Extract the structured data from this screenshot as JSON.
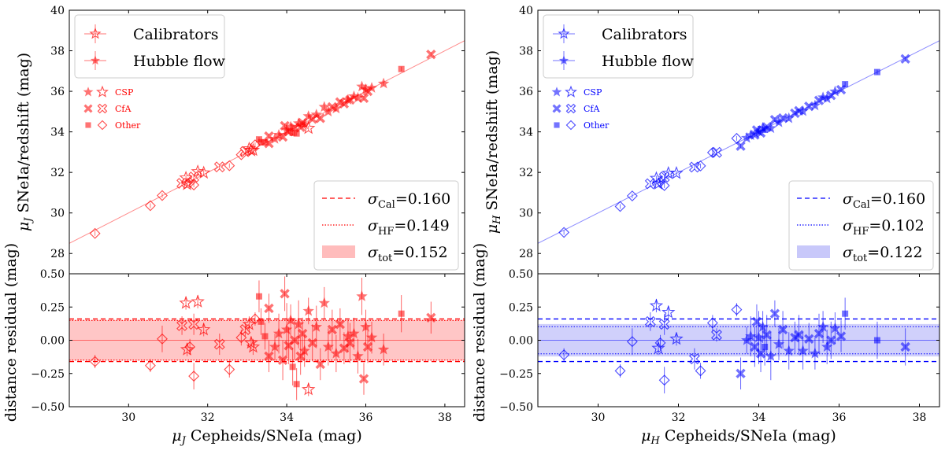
{
  "chart_data": [
    {
      "type": "scatter",
      "band": "J",
      "color": "#ff0000",
      "fill": "#ffbcbc",
      "title": "",
      "xlabel": "μJ Cepheids/SNeIa (mag)",
      "ylabel_top": "μJ SNeIa/redshift (mag)",
      "ylabel_bottom": "distance residual (mag)",
      "xlim": [
        28.5,
        38.5
      ],
      "ylim_top": [
        27,
        40
      ],
      "ylim_bottom": [
        -0.5,
        0.5
      ],
      "xticks": [
        "30",
        "32",
        "34",
        "36",
        "38"
      ],
      "yticks_top": [
        "28",
        "30",
        "32",
        "34",
        "36",
        "38",
        "40"
      ],
      "yticks_bottom": [
        "−0.50",
        "−0.25",
        "0.00",
        "0.25",
        "0.50"
      ],
      "legend_main": [
        "Calibrators",
        "Hubble flow"
      ],
      "legend_survey": [
        "CSP",
        "CfA",
        "Other"
      ],
      "legend_sigma": [
        {
          "label": "σCal",
          "sym": "σ",
          "sub": "Cal",
          "value": "0.160"
        },
        {
          "label": "σHF",
          "sym": "σ",
          "sub": "HF",
          "value": "0.149"
        },
        {
          "label": "σtot",
          "sym": "σ",
          "sub": "tot",
          "value": "0.152"
        }
      ],
      "sigma_cal": 0.16,
      "sigma_hf": 0.149,
      "sigma_tot": 0.152,
      "calibrators": [
        {
          "x": 29.15,
          "r": -0.16,
          "e": 0.05,
          "s": "other"
        },
        {
          "x": 30.55,
          "r": -0.19,
          "e": 0.05,
          "s": "other"
        },
        {
          "x": 30.85,
          "r": 0.01,
          "e": 0.1,
          "s": "other"
        },
        {
          "x": 31.35,
          "r": 0.11,
          "e": 0.07,
          "s": "cfa"
        },
        {
          "x": 31.45,
          "r": 0.28,
          "e": 0.05,
          "s": "csp"
        },
        {
          "x": 31.48,
          "r": -0.07,
          "e": 0.05,
          "s": "csp"
        },
        {
          "x": 31.55,
          "r": -0.05,
          "e": 0.06,
          "s": "other"
        },
        {
          "x": 31.65,
          "r": 0.12,
          "e": 0.08,
          "s": "cfa"
        },
        {
          "x": 31.65,
          "r": -0.27,
          "e": 0.1,
          "s": "other"
        },
        {
          "x": 31.75,
          "r": 0.29,
          "e": 0.05,
          "s": "csp"
        },
        {
          "x": 31.9,
          "r": 0.08,
          "e": 0.05,
          "s": "csp"
        },
        {
          "x": 32.3,
          "r": -0.03,
          "e": 0.08,
          "s": "cfa"
        },
        {
          "x": 32.55,
          "r": -0.22,
          "e": 0.06,
          "s": "other"
        },
        {
          "x": 32.85,
          "r": 0.02,
          "e": 0.06,
          "s": "other"
        },
        {
          "x": 32.95,
          "r": 0.08,
          "e": 0.05,
          "s": "cfa"
        },
        {
          "x": 33.05,
          "r": 0.12,
          "e": 0.06,
          "s": "csp"
        },
        {
          "x": 33.1,
          "r": -0.02,
          "e": 0.05,
          "s": "csp"
        },
        {
          "x": 33.15,
          "r": -0.05,
          "e": 0.06,
          "s": "csp"
        },
        {
          "x": 33.2,
          "r": 0.16,
          "e": 0.05,
          "s": "other"
        },
        {
          "x": 34.55,
          "r": -0.37,
          "e": 0.05,
          "s": "csp"
        }
      ],
      "hubble_flow": [
        {
          "x": 33.3,
          "r": 0.33,
          "e": 0.12,
          "s": "other"
        },
        {
          "x": 33.35,
          "r": 0.14,
          "e": 0.1,
          "s": "other"
        },
        {
          "x": 33.45,
          "r": 0.03,
          "e": 0.1,
          "s": "other"
        },
        {
          "x": 33.55,
          "r": -0.12,
          "e": 0.12,
          "s": "cfa"
        },
        {
          "x": 33.55,
          "r": 0.24,
          "e": 0.11,
          "s": "cfa"
        },
        {
          "x": 33.7,
          "r": -0.05,
          "e": 0.1,
          "s": "csp"
        },
        {
          "x": 33.8,
          "r": 0.05,
          "e": 0.15,
          "s": "csp"
        },
        {
          "x": 33.9,
          "r": -0.15,
          "e": 0.15,
          "s": "cfa"
        },
        {
          "x": 33.95,
          "r": 0.35,
          "e": 0.13,
          "s": "cfa"
        },
        {
          "x": 34.0,
          "r": 0.08,
          "e": 0.2,
          "s": "csp"
        },
        {
          "x": 34.05,
          "r": -0.04,
          "e": 0.14,
          "s": "cfa"
        },
        {
          "x": 34.1,
          "r": 0.15,
          "e": 0.12,
          "s": "csp"
        },
        {
          "x": 34.15,
          "r": -0.2,
          "e": 0.14,
          "s": "other"
        },
        {
          "x": 34.2,
          "r": 0.0,
          "e": 0.15,
          "s": "cfa"
        },
        {
          "x": 34.25,
          "r": -0.33,
          "e": 0.12,
          "s": "other"
        },
        {
          "x": 34.3,
          "r": 0.12,
          "e": 0.18,
          "s": "csp"
        },
        {
          "x": 34.35,
          "r": -0.12,
          "e": 0.14,
          "s": "cfa"
        },
        {
          "x": 34.4,
          "r": 0.05,
          "e": 0.12,
          "s": "cfa"
        },
        {
          "x": 34.45,
          "r": -0.08,
          "e": 0.12,
          "s": "csp"
        },
        {
          "x": 34.55,
          "r": 0.22,
          "e": 0.1,
          "s": "csp"
        },
        {
          "x": 34.65,
          "r": -0.02,
          "e": 0.14,
          "s": "cfa"
        },
        {
          "x": 34.75,
          "r": 0.1,
          "e": 0.16,
          "s": "csp"
        },
        {
          "x": 34.85,
          "r": -0.18,
          "e": 0.12,
          "s": "cfa"
        },
        {
          "x": 34.95,
          "r": 0.28,
          "e": 0.12,
          "s": "csp"
        },
        {
          "x": 35.05,
          "r": -0.05,
          "e": 0.14,
          "s": "csp"
        },
        {
          "x": 35.15,
          "r": 0.08,
          "e": 0.15,
          "s": "cfa"
        },
        {
          "x": 35.25,
          "r": -0.1,
          "e": 0.14,
          "s": "csp"
        },
        {
          "x": 35.35,
          "r": 0.12,
          "e": 0.12,
          "s": "cfa"
        },
        {
          "x": 35.45,
          "r": -0.06,
          "e": 0.12,
          "s": "cfa"
        },
        {
          "x": 35.55,
          "r": 0.03,
          "e": 0.12,
          "s": "csp"
        },
        {
          "x": 35.6,
          "r": -0.02,
          "e": 0.15,
          "s": "cfa"
        },
        {
          "x": 35.7,
          "r": 0.05,
          "e": 0.12,
          "s": "csp"
        },
        {
          "x": 35.8,
          "r": -0.12,
          "e": 0.13,
          "s": "csp"
        },
        {
          "x": 35.9,
          "r": 0.33,
          "e": 0.14,
          "s": "csp"
        },
        {
          "x": 35.95,
          "r": -0.29,
          "e": 0.12,
          "s": "cfa"
        },
        {
          "x": 36.0,
          "r": 0.1,
          "e": 0.13,
          "s": "csp"
        },
        {
          "x": 36.05,
          "r": -0.05,
          "e": 0.12,
          "s": "cfa"
        },
        {
          "x": 36.15,
          "r": 0.02,
          "e": 0.12,
          "s": "csp"
        },
        {
          "x": 36.45,
          "r": -0.07,
          "e": 0.12,
          "s": "csp"
        },
        {
          "x": 36.9,
          "r": 0.2,
          "e": 0.14,
          "s": "other"
        },
        {
          "x": 37.65,
          "r": 0.17,
          "e": 0.12,
          "s": "cfa"
        }
      ]
    },
    {
      "type": "scatter",
      "band": "H",
      "color": "#0000ff",
      "fill": "#c8c8fa",
      "title": "",
      "xlabel": "μH Cepheids/SNeIa (mag)",
      "ylabel_top": "μH SNeIa/redshift (mag)",
      "ylabel_bottom": "distance residual (mag)",
      "xlim": [
        28.5,
        38.5
      ],
      "ylim_top": [
        27,
        40
      ],
      "ylim_bottom": [
        -0.5,
        0.5
      ],
      "xticks": [
        "30",
        "32",
        "34",
        "36",
        "38"
      ],
      "yticks_top": [
        "28",
        "30",
        "32",
        "34",
        "36",
        "38",
        "40"
      ],
      "yticks_bottom": [
        "−0.50",
        "−0.25",
        "0.00",
        "0.25",
        "0.50"
      ],
      "legend_main": [
        "Calibrators",
        "Hubble flow"
      ],
      "legend_survey": [
        "CSP",
        "CfA",
        "Other"
      ],
      "legend_sigma": [
        {
          "label": "σCal",
          "sym": "σ",
          "sub": "Cal",
          "value": "0.160"
        },
        {
          "label": "σHF",
          "sym": "σ",
          "sub": "HF",
          "value": "0.102"
        },
        {
          "label": "σtot",
          "sym": "σ",
          "sub": "tot",
          "value": "0.122"
        }
      ],
      "sigma_cal": 0.16,
      "sigma_hf": 0.102,
      "sigma_tot": 0.122,
      "calibrators": [
        {
          "x": 29.15,
          "r": -0.11,
          "e": 0.05,
          "s": "other"
        },
        {
          "x": 30.55,
          "r": -0.23,
          "e": 0.05,
          "s": "other"
        },
        {
          "x": 30.85,
          "r": -0.01,
          "e": 0.1,
          "s": "other"
        },
        {
          "x": 31.3,
          "r": 0.14,
          "e": 0.07,
          "s": "cfa"
        },
        {
          "x": 31.45,
          "r": 0.26,
          "e": 0.05,
          "s": "csp"
        },
        {
          "x": 31.5,
          "r": -0.06,
          "e": 0.05,
          "s": "csp"
        },
        {
          "x": 31.55,
          "r": -0.02,
          "e": 0.06,
          "s": "other"
        },
        {
          "x": 31.65,
          "r": 0.12,
          "e": 0.08,
          "s": "cfa"
        },
        {
          "x": 31.65,
          "r": -0.3,
          "e": 0.1,
          "s": "other"
        },
        {
          "x": 31.75,
          "r": 0.21,
          "e": 0.05,
          "s": "csp"
        },
        {
          "x": 31.95,
          "r": 0.01,
          "e": 0.05,
          "s": "csp"
        },
        {
          "x": 32.4,
          "r": -0.14,
          "e": 0.08,
          "s": "cfa"
        },
        {
          "x": 32.55,
          "r": -0.23,
          "e": 0.06,
          "s": "other"
        },
        {
          "x": 32.85,
          "r": 0.13,
          "e": 0.06,
          "s": "other"
        },
        {
          "x": 32.95,
          "r": 0.04,
          "e": 0.05,
          "s": "cfa"
        },
        {
          "x": 33.45,
          "r": 0.23,
          "e": 0.05,
          "s": "other"
        }
      ],
      "hubble_flow": [
        {
          "x": 33.55,
          "r": -0.25,
          "e": 0.12,
          "s": "cfa"
        },
        {
          "x": 33.7,
          "r": 0.0,
          "e": 0.1,
          "s": "csp"
        },
        {
          "x": 33.8,
          "r": 0.03,
          "e": 0.15,
          "s": "csp"
        },
        {
          "x": 33.9,
          "r": -0.05,
          "e": 0.15,
          "s": "cfa"
        },
        {
          "x": 33.95,
          "r": 0.14,
          "e": 0.13,
          "s": "cfa"
        },
        {
          "x": 34.0,
          "r": 0.02,
          "e": 0.2,
          "s": "csp"
        },
        {
          "x": 34.05,
          "r": -0.1,
          "e": 0.14,
          "s": "cfa"
        },
        {
          "x": 34.1,
          "r": 0.1,
          "e": 0.12,
          "s": "csp"
        },
        {
          "x": 34.15,
          "r": -0.05,
          "e": 0.14,
          "s": "other"
        },
        {
          "x": 34.2,
          "r": 0.04,
          "e": 0.15,
          "s": "cfa"
        },
        {
          "x": 34.3,
          "r": -0.12,
          "e": 0.18,
          "s": "csp"
        },
        {
          "x": 34.4,
          "r": 0.2,
          "e": 0.1,
          "s": "cfa"
        },
        {
          "x": 34.5,
          "r": -0.03,
          "e": 0.12,
          "s": "csp"
        },
        {
          "x": 34.6,
          "r": 0.08,
          "e": 0.14,
          "s": "cfa"
        },
        {
          "x": 34.75,
          "r": -0.08,
          "e": 0.14,
          "s": "csp"
        },
        {
          "x": 34.9,
          "r": 0.02,
          "e": 0.12,
          "s": "cfa"
        },
        {
          "x": 35.0,
          "r": 0.04,
          "e": 0.15,
          "s": "cfa"
        },
        {
          "x": 35.1,
          "r": -0.08,
          "e": 0.14,
          "s": "csp"
        },
        {
          "x": 35.25,
          "r": 0.01,
          "e": 0.12,
          "s": "cfa"
        },
        {
          "x": 35.4,
          "r": -0.1,
          "e": 0.12,
          "s": "csp"
        },
        {
          "x": 35.5,
          "r": 0.05,
          "e": 0.15,
          "s": "cfa"
        },
        {
          "x": 35.6,
          "r": 0.1,
          "e": 0.12,
          "s": "csp"
        },
        {
          "x": 35.7,
          "r": -0.05,
          "e": 0.13,
          "s": "csp"
        },
        {
          "x": 35.8,
          "r": 0.0,
          "e": 0.14,
          "s": "cfa"
        },
        {
          "x": 35.9,
          "r": 0.09,
          "e": 0.12,
          "s": "csp"
        },
        {
          "x": 36.05,
          "r": 0.03,
          "e": 0.12,
          "s": "cfa"
        },
        {
          "x": 36.15,
          "r": 0.2,
          "e": 0.12,
          "s": "other"
        },
        {
          "x": 36.95,
          "r": 0.0,
          "e": 0.14,
          "s": "other"
        },
        {
          "x": 37.65,
          "r": -0.05,
          "e": 0.14,
          "s": "cfa"
        }
      ]
    }
  ]
}
